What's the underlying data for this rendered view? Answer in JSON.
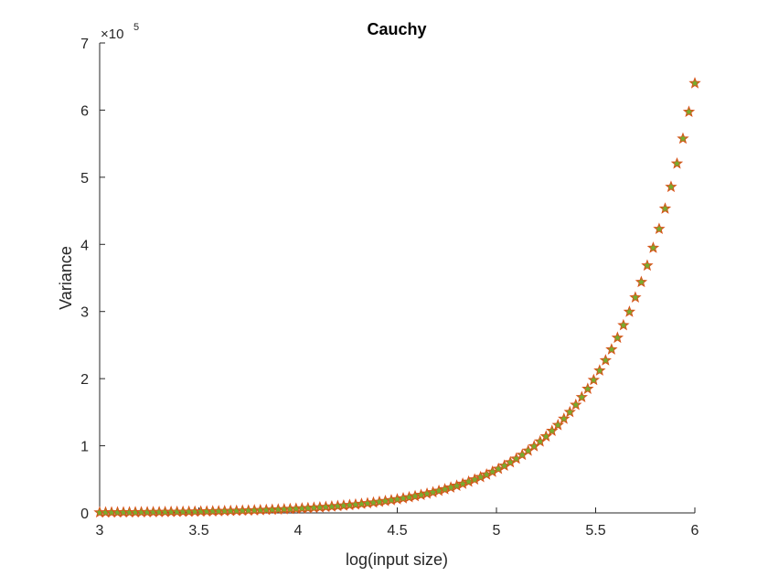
{
  "chart_data": {
    "type": "scatter",
    "title": "Cauchy",
    "xlabel": "log(input size)",
    "ylabel": "Variance",
    "xlim": [
      3,
      6
    ],
    "ylim": [
      0,
      7
    ],
    "y_scale_multiplier": {
      "base": "×10",
      "exponent": "5"
    },
    "xticks": [
      "3",
      "3.5",
      "4",
      "4.5",
      "5",
      "5.5",
      "6"
    ],
    "yticks": [
      "0",
      "1",
      "2",
      "3",
      "4",
      "5",
      "6",
      "7"
    ],
    "grid": false,
    "marker": {
      "shape": "star",
      "face_color": "#77ac30",
      "edge_color": "#d95319"
    },
    "x": [
      3.0,
      3.03,
      3.06,
      3.09,
      3.12,
      3.15,
      3.18,
      3.21,
      3.24,
      3.27,
      3.3,
      3.33,
      3.36,
      3.39,
      3.42,
      3.45,
      3.48,
      3.51,
      3.54,
      3.57,
      3.6,
      3.63,
      3.66,
      3.69,
      3.72,
      3.75,
      3.78,
      3.81,
      3.84,
      3.87,
      3.9,
      3.93,
      3.96,
      3.99,
      4.02,
      4.05,
      4.08,
      4.11,
      4.14,
      4.17,
      4.2,
      4.23,
      4.26,
      4.29,
      4.32,
      4.35,
      4.38,
      4.41,
      4.44,
      4.47,
      4.5,
      4.53,
      4.56,
      4.59,
      4.62,
      4.65,
      4.68,
      4.71,
      4.74,
      4.77,
      4.8,
      4.83,
      4.86,
      4.89,
      4.92,
      4.95,
      4.98,
      5.01,
      5.04,
      5.07,
      5.1,
      5.13,
      5.16,
      5.19,
      5.22,
      5.25,
      5.28,
      5.31,
      5.34,
      5.37,
      5.4,
      5.43,
      5.46,
      5.49,
      5.52,
      5.55,
      5.58,
      5.61,
      5.64,
      5.67,
      5.7,
      5.73,
      5.76,
      5.79,
      5.82,
      5.85,
      5.88,
      5.91,
      5.94,
      5.97,
      6.0
    ],
    "values": [
      0.0064,
      0.0069,
      0.0074,
      0.0079,
      0.0085,
      0.0091,
      0.0097,
      0.0104,
      0.0112,
      0.012,
      0.0128,
      0.0137,
      0.0147,
      0.0158,
      0.0169,
      0.0181,
      0.0194,
      0.0208,
      0.0223,
      0.0239,
      0.0256,
      0.0274,
      0.0294,
      0.0315,
      0.0337,
      0.0361,
      0.0387,
      0.0415,
      0.0444,
      0.0476,
      0.051,
      0.0547,
      0.0586,
      0.0627,
      0.0672,
      0.072,
      0.0772,
      0.0827,
      0.0886,
      0.0949,
      0.1017,
      0.109,
      0.1168,
      0.1251,
      0.1341,
      0.1436,
      0.1539,
      0.1649,
      0.1767,
      0.1893,
      0.2028,
      0.2173,
      0.2329,
      0.2495,
      0.2673,
      0.2865,
      0.307,
      0.3289,
      0.3524,
      0.3776,
      0.4046,
      0.4335,
      0.4645,
      0.4977,
      0.5333,
      0.5714,
      0.6122,
      0.656,
      0.7029,
      0.7531,
      0.8069,
      0.8646,
      0.9264,
      0.9926,
      1.0635,
      1.1395,
      1.221,
      1.3082,
      1.4017,
      1.5019,
      1.6092,
      1.7243,
      1.8475,
      1.9795,
      2.121,
      2.2726,
      2.435,
      2.609,
      2.7955,
      2.9953,
      3.2093,
      3.4387,
      3.6845,
      3.9478,
      4.2299,
      4.5322,
      4.8561,
      5.2032,
      5.575,
      5.9735,
      6.4
    ]
  }
}
